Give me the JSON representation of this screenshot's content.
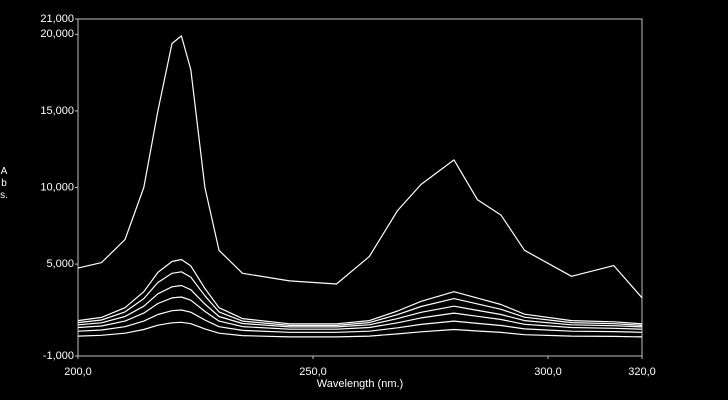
{
  "chart_data": {
    "type": "line",
    "x_label": "Wavelength (nm.)",
    "y_label": "Abs.",
    "x": [
      200,
      205,
      210,
      214,
      217,
      220,
      222,
      224,
      227,
      230,
      235,
      245,
      255,
      262,
      268,
      273,
      280,
      285,
      290,
      295,
      305,
      314,
      320
    ],
    "series": [
      {
        "color": "#ffffff",
        "values": [
          4.74,
          5.1,
          6.6,
          10,
          15,
          19.4,
          19.9,
          17.7,
          10,
          5.9,
          4.4,
          3.9,
          3.7,
          5.5,
          8.5,
          10.2,
          11.8,
          9.2,
          8.2,
          5.9,
          4.2,
          4.9,
          2.8
        ]
      },
      {
        "color": "#ffffff",
        "values": [
          1.31,
          1.52,
          2.15,
          3.2,
          4.46,
          5.17,
          5.3,
          4.88,
          3.41,
          2.15,
          1.44,
          1.1,
          1.1,
          1.31,
          1.94,
          2.57,
          3.2,
          2.78,
          2.36,
          1.73,
          1.31,
          1.23,
          1.1
        ]
      },
      {
        "color": "#ffffff",
        "values": [
          1.18,
          1.35,
          1.88,
          2.75,
          3.8,
          4.4,
          4.5,
          4.15,
          2.93,
          1.88,
          1.28,
          1.0,
          1.0,
          1.18,
          1.7,
          2.23,
          2.75,
          2.4,
          2.05,
          1.53,
          1.18,
          1.11,
          1.0
        ]
      },
      {
        "color": "#ffffff",
        "values": [
          1.04,
          1.17,
          1.58,
          2.25,
          3.06,
          3.52,
          3.6,
          3.33,
          2.39,
          1.58,
          1.12,
          0.9,
          0.9,
          1.04,
          1.44,
          1.85,
          2.25,
          1.98,
          1.71,
          1.31,
          1.04,
          0.98,
          0.9
        ]
      },
      {
        "color": "#ffffff",
        "values": [
          0.86,
          0.96,
          1.28,
          1.8,
          2.43,
          2.79,
          2.85,
          2.64,
          1.91,
          1.28,
          0.92,
          0.75,
          0.75,
          0.86,
          1.17,
          1.49,
          1.8,
          1.59,
          1.38,
          1.07,
          0.86,
          0.81,
          0.75
        ]
      },
      {
        "color": "#ffffff",
        "values": [
          0.62,
          0.7,
          0.91,
          1.28,
          1.71,
          1.96,
          2.0,
          1.86,
          1.35,
          0.91,
          0.67,
          0.55,
          0.55,
          0.62,
          0.84,
          1.06,
          1.28,
          1.13,
          0.99,
          0.77,
          0.62,
          0.59,
          0.55
        ]
      },
      {
        "color": "#ffffff",
        "values": [
          0.3,
          0.35,
          0.49,
          0.73,
          1.01,
          1.17,
          1.2,
          1.11,
          0.77,
          0.49,
          0.33,
          0.25,
          0.25,
          0.3,
          0.44,
          0.58,
          0.73,
          0.63,
          0.54,
          0.39,
          0.3,
          0.28,
          0.25
        ]
      }
    ],
    "xlim": [
      200,
      320
    ],
    "xticks": [
      {
        "value": 200,
        "label": "200,0"
      },
      {
        "value": 250,
        "label": "250,0"
      },
      {
        "value": 300,
        "label": "300,0"
      },
      {
        "value": 320,
        "label": "320,0"
      }
    ],
    "ylim": [
      -1,
      21
    ],
    "yticks": [
      {
        "value": -1,
        "label": "-1,000"
      },
      {
        "value": 5,
        "label": "5,000"
      },
      {
        "value": 10,
        "label": "10,000"
      },
      {
        "value": 15,
        "label": "15,000"
      },
      {
        "value": 20,
        "label": "20,000"
      },
      {
        "value": 21,
        "label": "21,000"
      }
    ],
    "grid": false
  }
}
